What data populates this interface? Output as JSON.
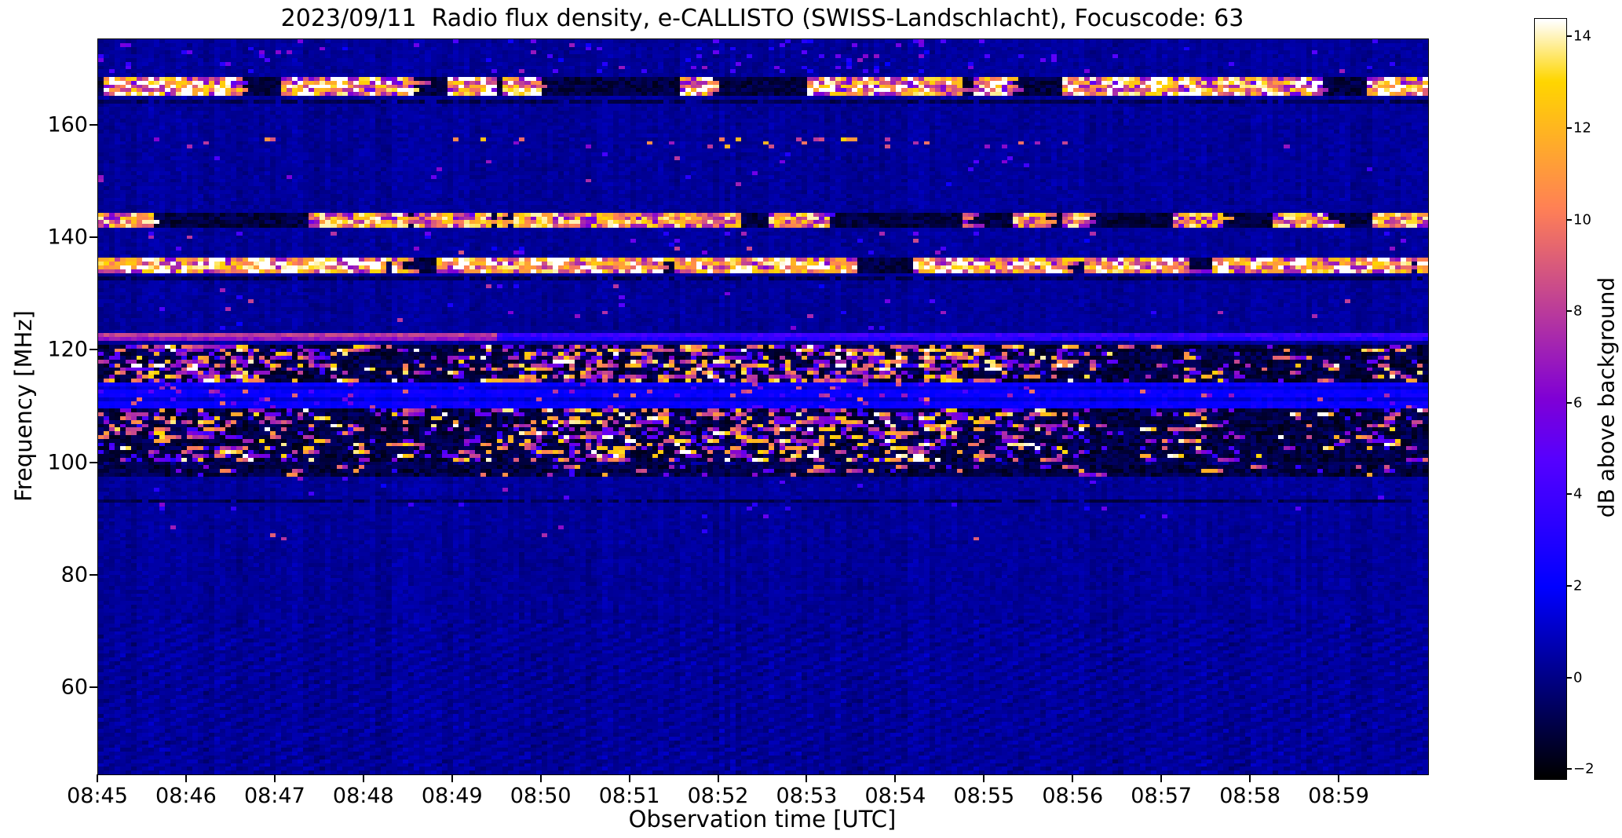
{
  "title": "2023/09/11  Radio flux density, e-CALLISTO (SWISS-Landschlacht), Focuscode: 63",
  "axes": {
    "xlabel": "Observation time [UTC]",
    "ylabel": "Frequency [MHz]",
    "x_ticks": [
      "08:45",
      "08:46",
      "08:47",
      "08:48",
      "08:49",
      "08:50",
      "08:51",
      "08:52",
      "08:53",
      "08:54",
      "08:55",
      "08:56",
      "08:57",
      "08:58",
      "08:59"
    ],
    "y_ticks": [
      160,
      140,
      120,
      100,
      80,
      60
    ]
  },
  "colorbar": {
    "label": "dB above background",
    "vmin": -2.2,
    "vmax": 14.4,
    "colormap": "gnuplot2",
    "ticks": [
      {
        "v": 14,
        "label": "14"
      },
      {
        "v": 12,
        "label": "12"
      },
      {
        "v": 10,
        "label": "10"
      },
      {
        "v": 8,
        "label": "8"
      },
      {
        "v": 6,
        "label": "6"
      },
      {
        "v": 4,
        "label": "4"
      },
      {
        "v": 2,
        "label": "2"
      },
      {
        "v": 0,
        "label": "0"
      },
      {
        "v": -2,
        "label": "−2"
      }
    ]
  },
  "chart_data": {
    "type": "heatmap",
    "title": "2023/09/11  Radio flux density, e-CALLISTO (SWISS-Landschlacht), Focuscode: 63",
    "xlabel": "Observation time [UTC]",
    "ylabel": "Frequency [MHz]",
    "colorbar_label": "dB above background",
    "colormap": "gnuplot2",
    "x_range_utc": [
      "08:45:00",
      "09:00:00"
    ],
    "x_tick_labels": [
      "08:45",
      "08:46",
      "08:47",
      "08:48",
      "08:49",
      "08:50",
      "08:51",
      "08:52",
      "08:53",
      "08:54",
      "08:55",
      "08:56",
      "08:57",
      "08:58",
      "08:59"
    ],
    "y_tick_labels": [
      160,
      140,
      120,
      100,
      80,
      60
    ],
    "y_view_mhz": [
      44.7,
      175.3
    ],
    "value_range_db": [
      -2.2,
      14.4
    ],
    "background_db": 0.3,
    "grid": {
      "cols": 240,
      "rows": 195
    },
    "seed": 911,
    "ripple": {
      "f_max_mhz": 72,
      "amplitude_db": 0.45
    },
    "bands": [
      {
        "f_lo": 169.5,
        "f_hi": 175.3,
        "style": "dots",
        "density": 0.04,
        "min_db": 2,
        "max_db": 7
      },
      {
        "f_lo": 165.3,
        "f_hi": 168.6,
        "style": "burst",
        "density": 0.72,
        "min_db": 5,
        "max_db": 15
      },
      {
        "f_lo": 163.6,
        "f_hi": 164.5,
        "style": "dark"
      },
      {
        "f_lo": 155.9,
        "f_hi": 157.6,
        "style": "dots",
        "density": 0.05,
        "min_db": 6,
        "max_db": 13
      },
      {
        "f_lo": 149.0,
        "f_hi": 155.0,
        "style": "dots",
        "density": 0.012,
        "min_db": 2,
        "max_db": 8
      },
      {
        "f_lo": 141.9,
        "f_hi": 144.6,
        "style": "burst",
        "density": 0.6,
        "min_db": 5,
        "max_db": 14
      },
      {
        "f_lo": 137.0,
        "f_hi": 141.0,
        "style": "dots",
        "density": 0.02,
        "min_db": 2,
        "max_db": 9
      },
      {
        "f_lo": 133.7,
        "f_hi": 136.6,
        "style": "burst",
        "density": 0.75,
        "min_db": 6,
        "max_db": 15
      },
      {
        "f_lo": 132.2,
        "f_hi": 132.9,
        "style": "dark"
      },
      {
        "f_lo": 124.0,
        "f_hi": 131.5,
        "style": "dots",
        "density": 0.012,
        "min_db": 2,
        "max_db": 9
      },
      {
        "f_lo": 121.5,
        "f_hi": 123.4,
        "style": "line",
        "min_db": 5,
        "max_db": 11,
        "bright_until": 0.3
      },
      {
        "f_lo": 114.4,
        "f_hi": 121.2,
        "style": "speckle",
        "density": 0.3,
        "min_db": 3,
        "max_db": 15,
        "black_base": true
      },
      {
        "f_lo": 110.0,
        "f_hi": 114.4,
        "style": "stripes",
        "boost": 1.6
      },
      {
        "f_lo": 110.0,
        "f_hi": 114.4,
        "style": "dots",
        "density": 0.05,
        "min_db": 3,
        "max_db": 10
      },
      {
        "f_lo": 100.4,
        "f_hi": 110.0,
        "style": "speckle",
        "density": 0.24,
        "min_db": 3,
        "max_db": 15,
        "black_base": true
      },
      {
        "f_lo": 99.6,
        "f_hi": 100.2,
        "style": "dark"
      },
      {
        "f_lo": 97.9,
        "f_hi": 99.6,
        "style": "speckle",
        "density": 0.1,
        "min_db": 3,
        "max_db": 12,
        "black_base": true
      },
      {
        "f_lo": 92.9,
        "f_hi": 93.8,
        "style": "dark"
      },
      {
        "f_lo": 90.0,
        "f_hi": 97.9,
        "style": "dots",
        "density": 0.012,
        "min_db": 2,
        "max_db": 7
      },
      {
        "f_lo": 84.5,
        "f_hi": 89.5,
        "style": "dots",
        "density": 0.006,
        "min_db": 3,
        "max_db": 10
      }
    ]
  }
}
